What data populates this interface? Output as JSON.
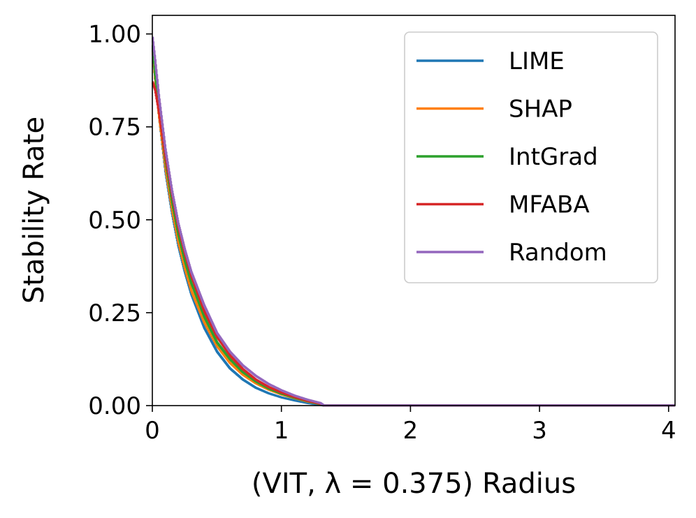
{
  "chart_data": {
    "type": "line",
    "title": "",
    "xlabel": "(VIT, λ = 0.375) Radius",
    "ylabel": "Stability Rate",
    "xlim": [
      0,
      4.05
    ],
    "ylim": [
      0,
      1.05
    ],
    "xticks": [
      0,
      1,
      2,
      3,
      4
    ],
    "xtick_labels": [
      "0",
      "1",
      "2",
      "3",
      "4"
    ],
    "yticks": [
      0,
      0.25,
      0.5,
      0.75,
      1.0
    ],
    "ytick_labels": [
      "0.00",
      "0.25",
      "0.50",
      "0.75",
      "1.00"
    ],
    "grid": false,
    "legend_position": "top-right",
    "step_size": 0.004,
    "series": [
      {
        "name": "LIME",
        "color": "#1f77b4",
        "x": [
          0,
          0.02,
          0.05,
          0.1,
          0.15,
          0.2,
          0.25,
          0.3,
          0.4,
          0.5,
          0.6,
          0.7,
          0.8,
          0.9,
          1.0,
          1.1,
          1.2,
          1.3,
          1.33,
          4.05
        ],
        "y": [
          0.97,
          0.88,
          0.78,
          0.63,
          0.52,
          0.43,
          0.36,
          0.3,
          0.21,
          0.145,
          0.1,
          0.07,
          0.048,
          0.033,
          0.022,
          0.014,
          0.007,
          0.002,
          0.0,
          0.0
        ]
      },
      {
        "name": "SHAP",
        "color": "#ff7f0e",
        "x": [
          0,
          0.02,
          0.05,
          0.1,
          0.15,
          0.2,
          0.25,
          0.3,
          0.4,
          0.5,
          0.6,
          0.7,
          0.8,
          0.9,
          1.0,
          1.1,
          1.2,
          1.3,
          1.33,
          4.05
        ],
        "y": [
          0.96,
          0.88,
          0.78,
          0.64,
          0.53,
          0.44,
          0.37,
          0.31,
          0.225,
          0.16,
          0.115,
          0.083,
          0.06,
          0.043,
          0.03,
          0.02,
          0.011,
          0.004,
          0.0,
          0.0
        ]
      },
      {
        "name": "IntGrad",
        "color": "#2ca02c",
        "x": [
          0,
          0.02,
          0.05,
          0.1,
          0.15,
          0.2,
          0.25,
          0.3,
          0.4,
          0.5,
          0.6,
          0.7,
          0.8,
          0.9,
          1.0,
          1.1,
          1.2,
          1.3,
          1.33,
          4.05
        ],
        "y": [
          0.97,
          0.89,
          0.8,
          0.66,
          0.55,
          0.46,
          0.39,
          0.33,
          0.24,
          0.17,
          0.125,
          0.09,
          0.065,
          0.046,
          0.032,
          0.021,
          0.012,
          0.004,
          0.0,
          0.0
        ]
      },
      {
        "name": "MFABA",
        "color": "#d62728",
        "x": [
          0,
          0.02,
          0.05,
          0.1,
          0.15,
          0.2,
          0.25,
          0.3,
          0.4,
          0.5,
          0.6,
          0.7,
          0.8,
          0.9,
          1.0,
          1.1,
          1.2,
          1.3,
          1.33,
          4.05
        ],
        "y": [
          0.87,
          0.85,
          0.79,
          0.67,
          0.57,
          0.48,
          0.41,
          0.35,
          0.255,
          0.185,
          0.135,
          0.098,
          0.07,
          0.05,
          0.035,
          0.023,
          0.013,
          0.005,
          0.0,
          0.0
        ]
      },
      {
        "name": "Random",
        "color": "#9467bd",
        "x": [
          0,
          0.02,
          0.05,
          0.1,
          0.15,
          0.2,
          0.25,
          0.3,
          0.4,
          0.5,
          0.6,
          0.7,
          0.8,
          0.9,
          1.0,
          1.1,
          1.2,
          1.3,
          1.33,
          4.05
        ],
        "y": [
          0.99,
          0.93,
          0.83,
          0.69,
          0.58,
          0.49,
          0.42,
          0.36,
          0.27,
          0.195,
          0.145,
          0.108,
          0.08,
          0.058,
          0.041,
          0.027,
          0.016,
          0.007,
          0.0,
          0.0
        ]
      }
    ]
  }
}
